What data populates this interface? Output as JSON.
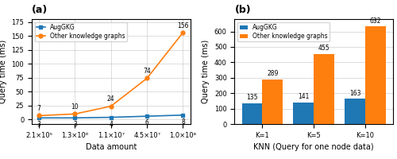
{
  "chart_data": [
    {
      "type": "line",
      "title": "(a)",
      "categories": [
        "2.1×10⁵",
        "1.3×10⁶",
        "1.1×10⁷",
        "4.5×10⁷",
        "1.0×10⁸"
      ],
      "series": [
        {
          "name": "AugGKG",
          "values": [
            3,
            3,
            4,
            6,
            8
          ],
          "marker": "square"
        },
        {
          "name": "Other knowledge graphs",
          "values": [
            7,
            10,
            24,
            74,
            156
          ],
          "marker": "circle"
        }
      ],
      "xlabel": "Data amount",
      "ylabel": "Query time (ms)",
      "ylim": [
        -8,
        180
      ],
      "yticks": [
        0,
        25,
        50,
        75,
        100,
        125,
        150,
        175
      ],
      "grid": true,
      "legend": "upper left",
      "data_labels": true
    },
    {
      "type": "bar",
      "title": "(b)",
      "categories": [
        "K=1",
        "K=5",
        "K=10"
      ],
      "series": [
        {
          "name": "AugGKG",
          "values": [
            135,
            141,
            163
          ]
        },
        {
          "name": "Other knowledge graphs",
          "values": [
            289,
            455,
            632
          ]
        }
      ],
      "xlabel": "KNN (Query for one node data)",
      "ylabel": "Query time (ms)",
      "ylim": [
        0,
        680
      ],
      "yticks": [
        0,
        100,
        200,
        300,
        400,
        500,
        600
      ],
      "grid": "y",
      "legend": "upper left",
      "data_labels": true
    }
  ]
}
